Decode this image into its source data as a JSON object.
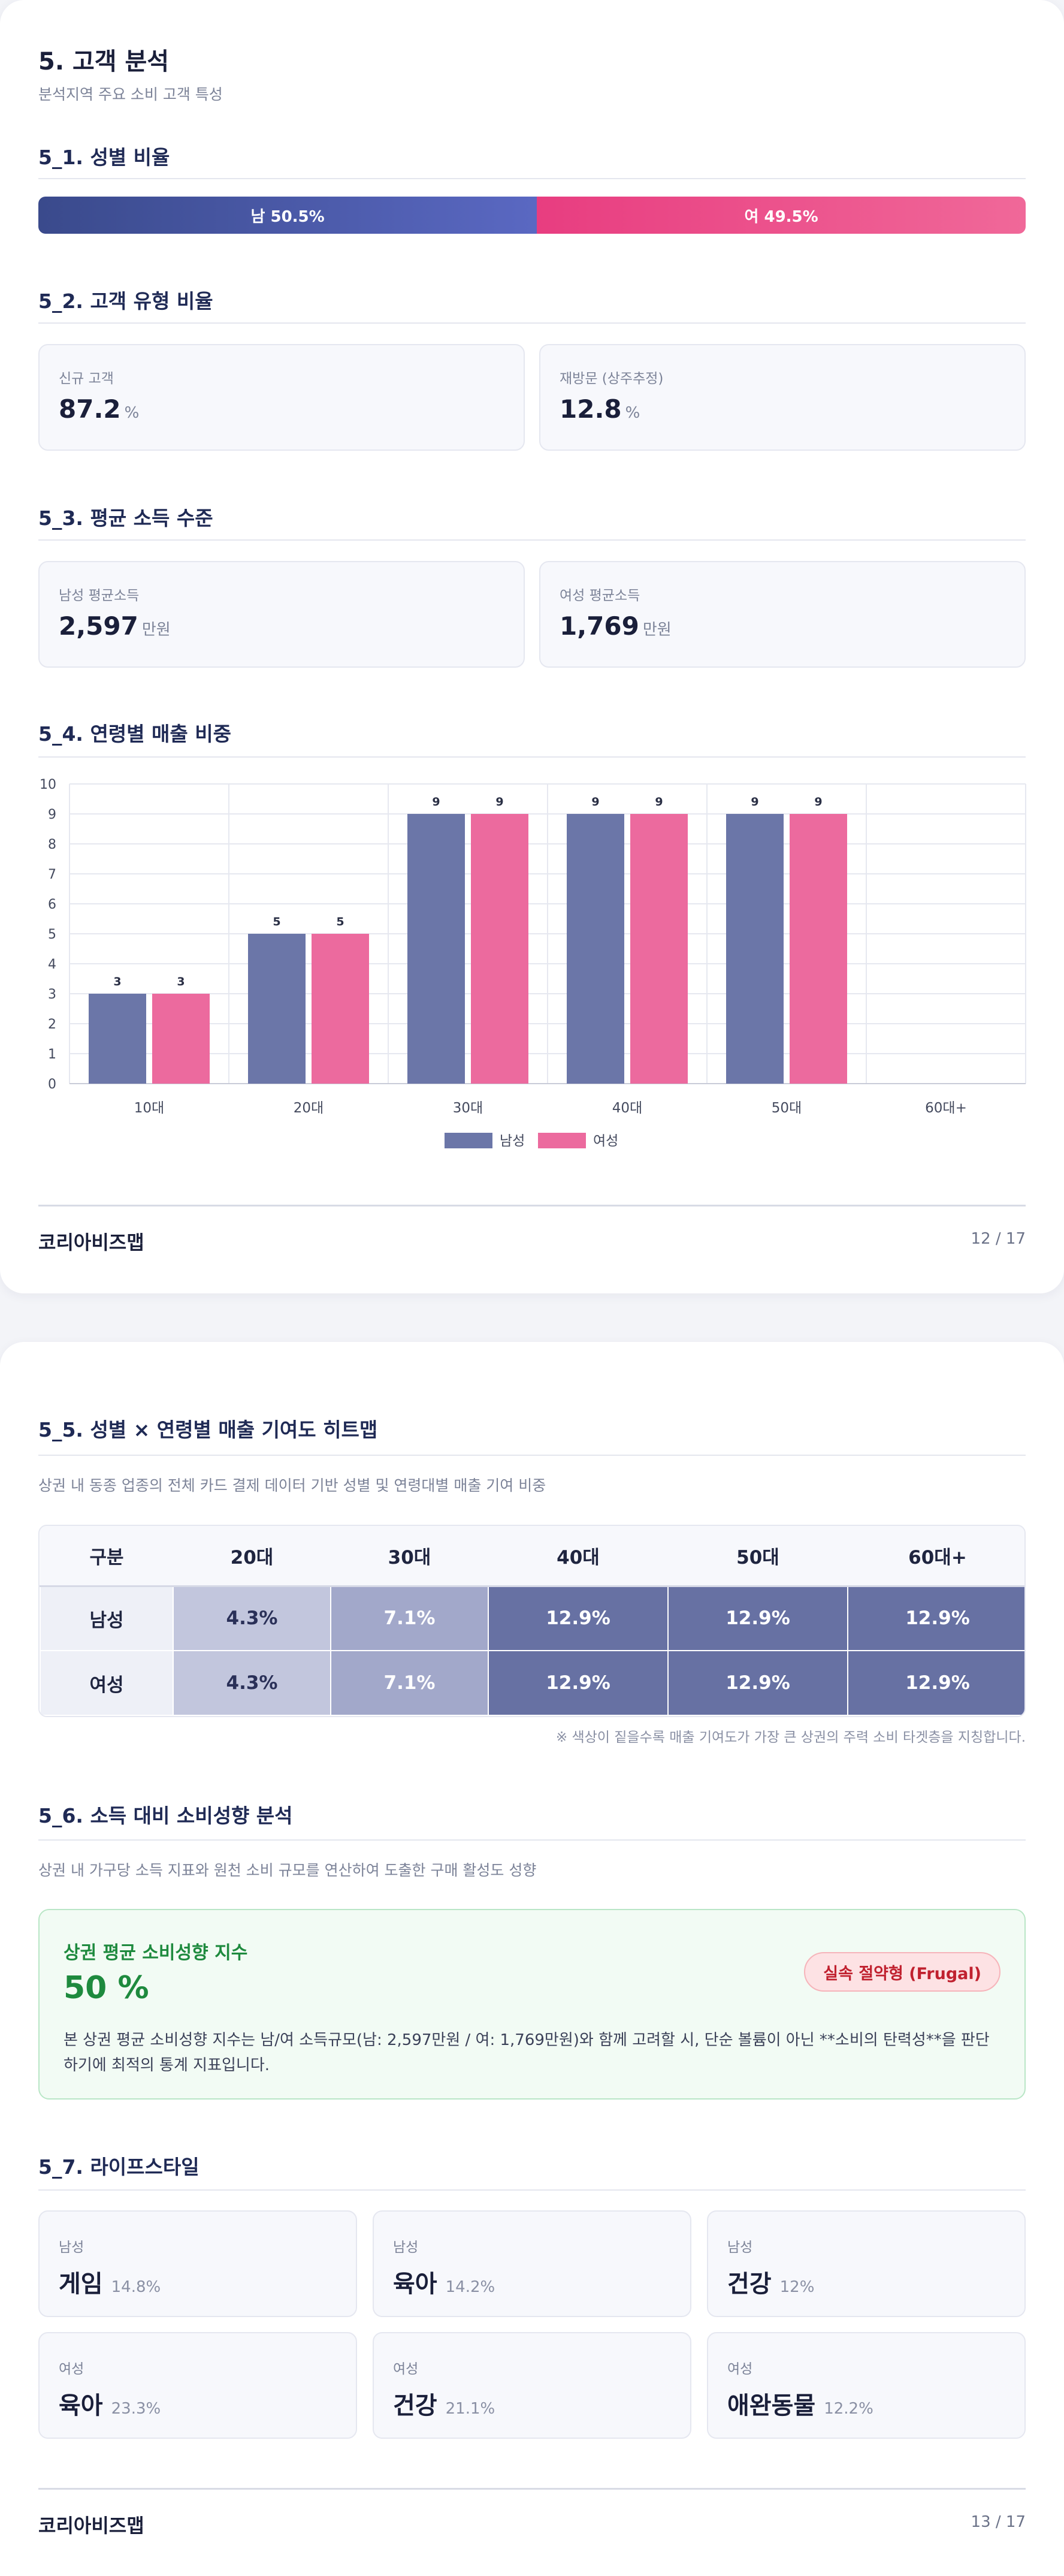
{
  "page1": {
    "title": "5. 고객 분석",
    "subtitle": "분석지역 주요 소비 고객 특성",
    "gender": {
      "heading": "5_1. 성별 비율",
      "male_label": "남 50.5%",
      "female_label": "여 49.5%",
      "male_pct": 50.5,
      "female_pct": 49.5
    },
    "customer_type": {
      "heading": "5_2. 고객 유형 비율",
      "new_label": "신규 고객",
      "new_value": "87.2",
      "new_unit": "%",
      "return_label": "재방문 (상주추정)",
      "return_value": "12.8",
      "return_unit": "%"
    },
    "income": {
      "heading": "5_3. 평균 소득 수준",
      "male_label": "남성 평균소득",
      "male_value": "2,597",
      "male_unit": "만원",
      "female_label": "여성 평균소득",
      "female_value": "1,769",
      "female_unit": "만원"
    },
    "age_sales": {
      "heading": "5_4. 연령별 매출 비중"
    },
    "footer": {
      "brand": "코리아비즈맵",
      "page": "12 / 17"
    }
  },
  "chart_data": {
    "type": "bar",
    "categories": [
      "10대",
      "20대",
      "30대",
      "40대",
      "50대",
      "60대+"
    ],
    "series": [
      {
        "name": "남성",
        "values": [
          3,
          5,
          9,
          9,
          9,
          0
        ],
        "color": "#6b76a8"
      },
      {
        "name": "여성",
        "values": [
          3,
          5,
          9,
          9,
          9,
          0
        ],
        "color": "#ec6a9e"
      }
    ],
    "ylim": [
      0,
      10
    ],
    "yticks": [
      0,
      1,
      2,
      3,
      4,
      5,
      6,
      7,
      8,
      9,
      10
    ],
    "grid": true,
    "legend": "bottom"
  },
  "page2": {
    "heatmap": {
      "heading": "5_5. 성별 × 연령별 매출 기여도 히트맵",
      "desc": "상권 내 동종 업종의 전체 카드 결제 데이터 기반 성별 및 연령대별 매출 기여 비중",
      "columns": [
        "구분",
        "20대",
        "30대",
        "40대",
        "50대",
        "60대+"
      ],
      "rows": [
        {
          "label": "남성",
          "cells": [
            "4.3%",
            "7.1%",
            "12.9%",
            "12.9%",
            "12.9%"
          ]
        },
        {
          "label": "여성",
          "cells": [
            "4.3%",
            "7.1%",
            "12.9%",
            "12.9%",
            "12.9%"
          ]
        }
      ],
      "cell_colors": [
        "#c2c6dd",
        "#a2a8ca",
        "#6771a3",
        "#6771a3",
        "#6771a3"
      ],
      "note": "※ 색상이 짙을수록 매출 기여도가 가장 큰 상권의 주력 소비 타겟층을 지칭합니다."
    },
    "propensity": {
      "heading": "5_6. 소득 대비 소비성향 분석",
      "desc": "상권 내 가구당 소득 지표와 원천 소비 규모를 연산하여 도출한 구매 활성도 성향",
      "index_title": "상권 평균 소비성향 지수",
      "index_value": "50 %",
      "badge": "실속 절약형 (Frugal)",
      "body": "본 상권 평균 소비성향 지수는 남/여 소득규모(남: 2,597만원 / 여: 1,769만원)와 함께 고려할 시, 단순 볼륨이 아닌 **소비의 탄력성**을 판단하기에 최적의 통계 지표입니다."
    },
    "lifestyle": {
      "heading": "5_7. 라이프스타일",
      "items": [
        {
          "gender": "남성",
          "name": "게임",
          "pct": "14.8%"
        },
        {
          "gender": "남성",
          "name": "육아",
          "pct": "14.2%"
        },
        {
          "gender": "남성",
          "name": "건강",
          "pct": "12%"
        },
        {
          "gender": "여성",
          "name": "육아",
          "pct": "23.3%"
        },
        {
          "gender": "여성",
          "name": "건강",
          "pct": "21.1%"
        },
        {
          "gender": "여성",
          "name": "애완동물",
          "pct": "12.2%"
        }
      ]
    },
    "footer": {
      "brand": "코리아비즈맵",
      "page": "13 / 17"
    }
  }
}
